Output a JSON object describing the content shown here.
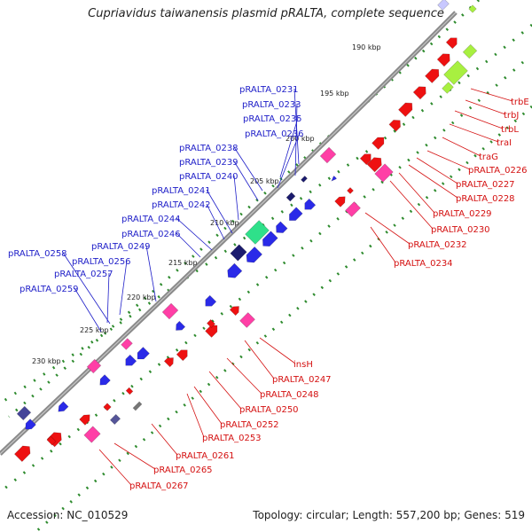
{
  "map": {
    "title": "Cupriavidus taiwanensis plasmid pRALTA, complete sequence",
    "accession": "Accession: NC_010529",
    "summary": "Topology: circular; Length: 557,200 bp; Genes: 519",
    "colors": {
      "plus_strand": "#2a2ae8",
      "minus_strand": "#ee1111",
      "pseudo": "#ff3fa6",
      "rna_green": "#2fe08a",
      "navy": "#1b1b6e",
      "gc_green": "#2e8b2e",
      "backbone": "#8a8a8a",
      "lime": "#a8f040",
      "label_blue": "#1e1ec8",
      "label_red": "#d41010"
    },
    "kbp_ticks": [
      "190 kbp",
      "195 kbp",
      "200 kbp",
      "205 kbp",
      "210 kbp",
      "215 kbp",
      "220 kbp",
      "225 kbp",
      "230 kbp"
    ],
    "plus_strand_labels": [
      "pRALTA_0231",
      "pRALTA_0233",
      "pRALTA_0235",
      "pRALTA_0236",
      "pRALTA_0238",
      "pRALTA_0239",
      "pRALTA_0240",
      "pRALTA_0241",
      "pRALTA_0242",
      "pRALTA_0244",
      "pRALTA_0246",
      "pRALTA_0249",
      "pRALTA_0256",
      "pRALTA_0258",
      "pRALTA_0257",
      "pRALTA_0259"
    ],
    "minus_strand_labels": [
      "trbE",
      "trbJ",
      "trbL",
      "traI",
      "traG",
      "pRALTA_0226",
      "pRALTA_0227",
      "pRALTA_0228",
      "pRALTA_0229",
      "pRALTA_0230",
      "pRALTA_0232",
      "pRALTA_0234",
      "insH",
      "pRALTA_0247",
      "pRALTA_0248",
      "pRALTA_0250",
      "pRALTA_0252",
      "pRALTA_0253",
      "pRALTA_0261",
      "pRALTA_0265",
      "pRALTA_0267"
    ]
  }
}
